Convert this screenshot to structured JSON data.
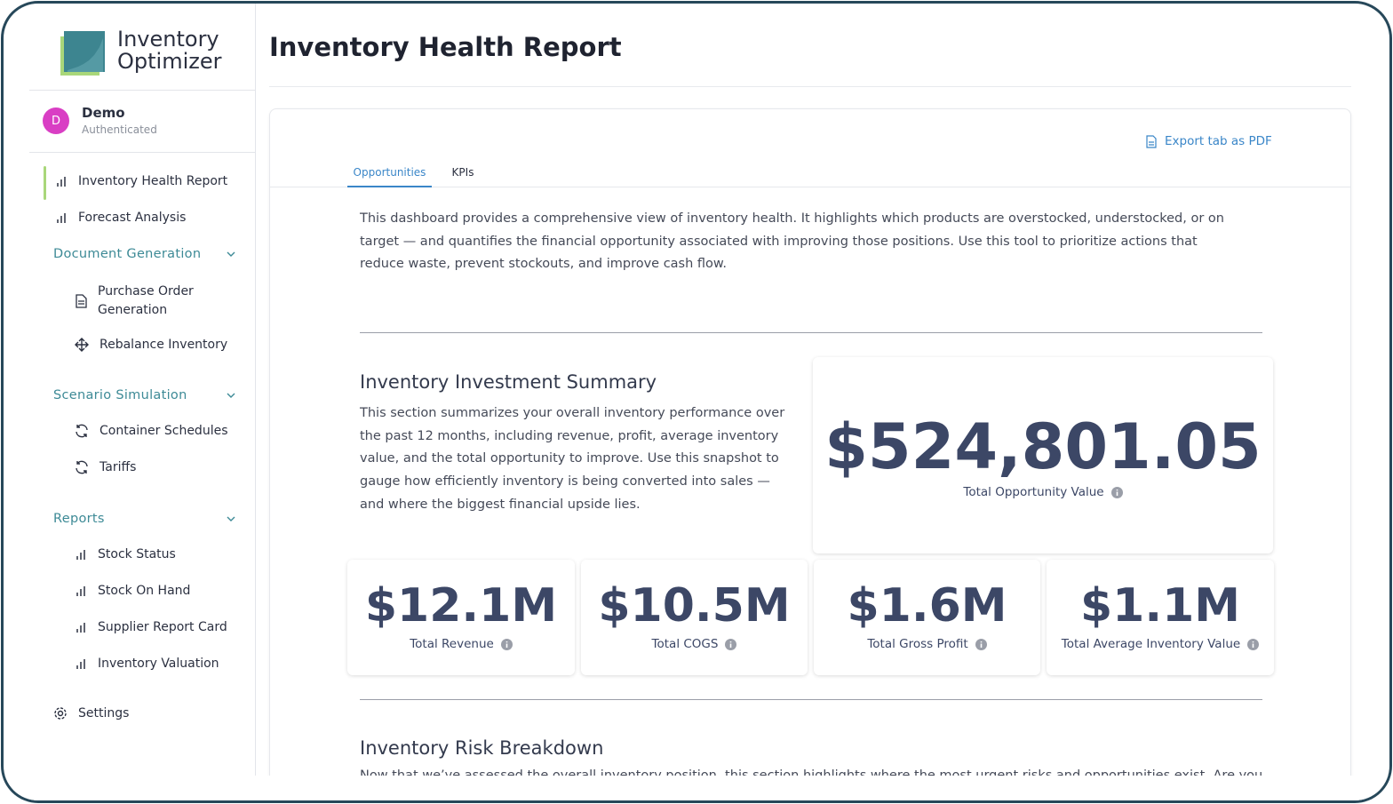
{
  "brand": {
    "line1": "Inventory",
    "line2": "Optimizer"
  },
  "user": {
    "avatar": "D",
    "name": "Demo",
    "status": "Authenticated"
  },
  "nav": {
    "top": [
      "Inventory Health Report",
      "Forecast Analysis"
    ],
    "groups": [
      {
        "title": "Document Generation",
        "items": [
          "Purchase Order Generation",
          "Rebalance Inventory"
        ]
      },
      {
        "title": "Scenario Simulation",
        "items": [
          "Container Schedules",
          "Tariffs"
        ]
      },
      {
        "title": "Reports",
        "items": [
          "Stock Status",
          "Stock On Hand",
          "Supplier Report Card",
          "Inventory Valuation"
        ]
      }
    ],
    "settings": "Settings"
  },
  "header": {
    "title": "Inventory Health Report"
  },
  "content": {
    "export": "Export tab as PDF",
    "tabs": [
      "Opportunities",
      "KPIs"
    ],
    "intro": "This dashboard provides a comprehensive view of inventory health. It highlights which products are overstocked, understocked, or on target — and quantifies the financial opportunity associated with improving those positions. Use this tool to prioritize actions that reduce waste, prevent stockouts, and improve cash flow.",
    "summary": {
      "title": "Inventory Investment Summary",
      "text": "This section summarizes your overall inventory performance over the past 12 months, including revenue, profit, average inventory value, and the total opportunity to improve. Use this snapshot to gauge how efficiently inventory is being converted into sales — and where the biggest financial upside lies.",
      "total": {
        "value": "$524,801.05",
        "label": "Total Opportunity Value"
      },
      "kpis": [
        {
          "value": "$12.1M",
          "label": "Total Revenue"
        },
        {
          "value": "$10.5M",
          "label": "Total COGS"
        },
        {
          "value": "$1.6M",
          "label": "Total Gross Profit"
        },
        {
          "value": "$1.1M",
          "label": "Total Average Inventory Value"
        }
      ]
    },
    "risk": {
      "title": "Inventory Risk Breakdown",
      "text": "Now that we’ve assessed the overall inventory position, this section highlights where the most urgent risks and opportunities exist. Are you holding"
    }
  }
}
